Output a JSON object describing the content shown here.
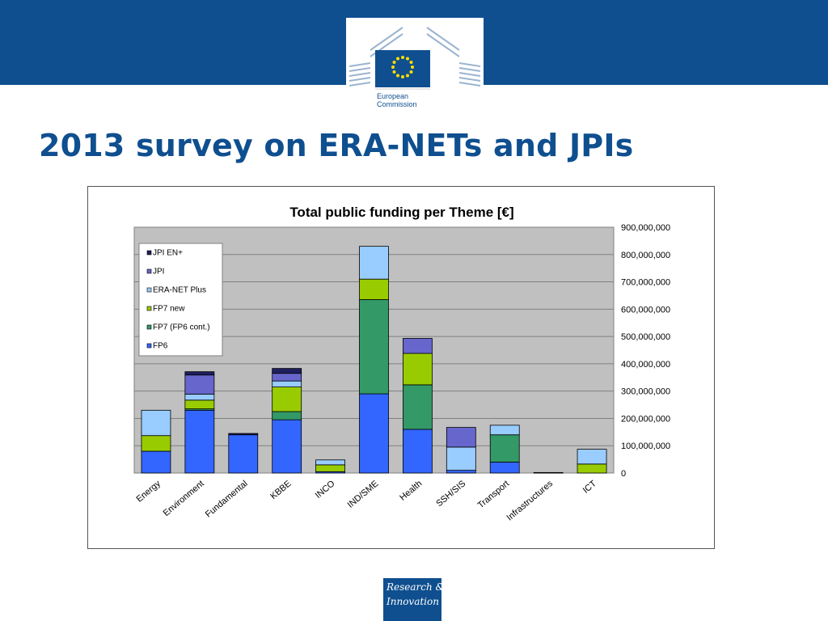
{
  "header": {
    "logo_text_line1": "European",
    "logo_text_line2": "Commission",
    "band_color": "#0f4f8f"
  },
  "slide": {
    "title": "2013 survey on ERA-NETs and JPIs"
  },
  "footer": {
    "logo_line1": "Research &",
    "logo_line2": "Innovation"
  },
  "chart_data": {
    "type": "bar",
    "stacked": true,
    "title": "Total public funding per Theme [€]",
    "xlabel": "",
    "ylabel": "",
    "ylim": [
      0,
      900000000
    ],
    "y_ticks": [
      0,
      100000000,
      200000000,
      300000000,
      400000000,
      500000000,
      600000000,
      700000000,
      800000000,
      900000000
    ],
    "y_tick_labels": [
      "0",
      "100,000,000",
      "200,000,000",
      "300,000,000",
      "400,000,000",
      "500,000,000",
      "600,000,000",
      "700,000,000",
      "800,000,000",
      "900,000,000"
    ],
    "y_axis_side": "right",
    "grid": true,
    "legend_position": "top-left",
    "categories": [
      "Energy",
      "Environment",
      "Fundamental",
      "KBBE",
      "INCO",
      "IND/SME",
      "Health",
      "SSH/SIS",
      "Transport",
      "Infrastructures",
      "ICT"
    ],
    "series": [
      {
        "name": "FP6",
        "color": "#3366ff",
        "values": [
          80000000,
          230000000,
          140000000,
          195000000,
          5000000,
          290000000,
          160000000,
          10000000,
          40000000,
          2000000,
          0
        ]
      },
      {
        "name": "FP7 (FP6 cont.)",
        "color": "#339966",
        "values": [
          0,
          5000000,
          0,
          30000000,
          0,
          345000000,
          163000000,
          0,
          100000000,
          0,
          0
        ]
      },
      {
        "name": "FP7 new",
        "color": "#99cc00",
        "values": [
          57000000,
          32000000,
          0,
          90000000,
          25000000,
          75000000,
          115000000,
          0,
          0,
          0,
          33000000
        ]
      },
      {
        "name": "ERA-NET Plus",
        "color": "#99ccff",
        "values": [
          93000000,
          22000000,
          0,
          22000000,
          18000000,
          120000000,
          0,
          85000000,
          35000000,
          0,
          54000000
        ]
      },
      {
        "name": "JPI",
        "color": "#6666cc",
        "values": [
          0,
          70000000,
          0,
          28000000,
          0,
          0,
          55000000,
          72000000,
          0,
          0,
          0
        ]
      },
      {
        "name": "JPI EN+",
        "color": "#1f1f5f",
        "values": [
          0,
          12000000,
          5000000,
          18000000,
          0,
          0,
          0,
          0,
          0,
          0,
          0
        ]
      }
    ],
    "plot_background": "#c0c0c0"
  }
}
